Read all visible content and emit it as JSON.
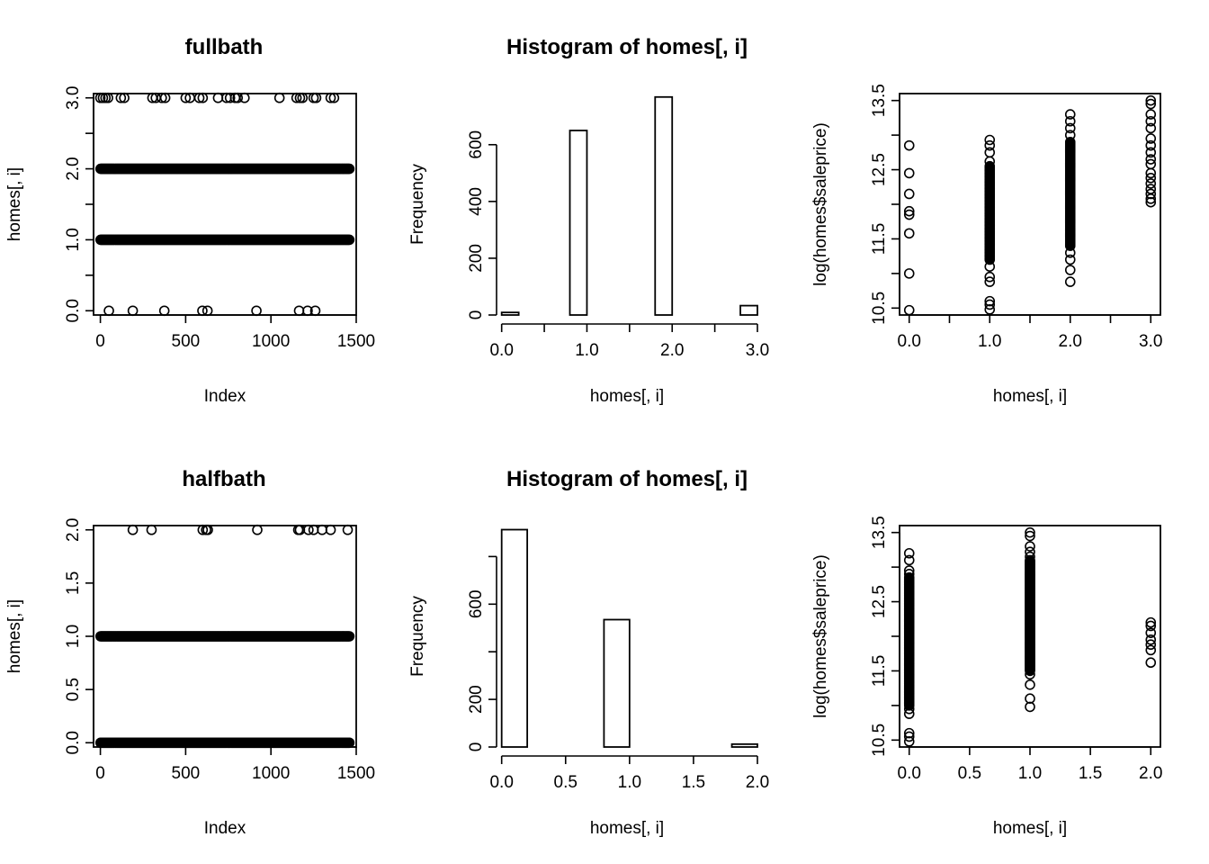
{
  "chart_data": [
    {
      "type": "scatter",
      "title": "fullbath",
      "xlabel": "Index",
      "ylabel": "homes[, i]",
      "xlim": [
        -40,
        1500
      ],
      "ylim": [
        -0.06,
        3.06
      ],
      "xticks": [
        0,
        500,
        1000,
        1500
      ],
      "xtick_labels": [
        "0",
        "500",
        "1000",
        "1500"
      ],
      "yticks": [
        0,
        0.5,
        1,
        1.5,
        2,
        2.5,
        3
      ],
      "ytick_labels": [
        "0.0",
        "",
        "1.0",
        "",
        "2.0",
        "",
        "3.0"
      ],
      "grid": false,
      "dense_rows": [
        {
          "y": 1,
          "x_from": 1,
          "x_to": 1460
        },
        {
          "y": 2,
          "x_from": 1,
          "x_to": 1460
        }
      ],
      "points": [
        {
          "x": 0,
          "y": 3
        },
        {
          "x": 15,
          "y": 3
        },
        {
          "x": 30,
          "y": 3
        },
        {
          "x": 45,
          "y": 3
        },
        {
          "x": 120,
          "y": 3
        },
        {
          "x": 140,
          "y": 3
        },
        {
          "x": 305,
          "y": 3
        },
        {
          "x": 325,
          "y": 3
        },
        {
          "x": 360,
          "y": 3
        },
        {
          "x": 380,
          "y": 3
        },
        {
          "x": 500,
          "y": 3
        },
        {
          "x": 525,
          "y": 3
        },
        {
          "x": 580,
          "y": 3
        },
        {
          "x": 600,
          "y": 3
        },
        {
          "x": 690,
          "y": 3
        },
        {
          "x": 740,
          "y": 3
        },
        {
          "x": 760,
          "y": 3
        },
        {
          "x": 790,
          "y": 3
        },
        {
          "x": 805,
          "y": 3
        },
        {
          "x": 845,
          "y": 3
        },
        {
          "x": 1050,
          "y": 3
        },
        {
          "x": 1150,
          "y": 3
        },
        {
          "x": 1170,
          "y": 3
        },
        {
          "x": 1185,
          "y": 3
        },
        {
          "x": 1250,
          "y": 3
        },
        {
          "x": 1265,
          "y": 3
        },
        {
          "x": 1350,
          "y": 3
        },
        {
          "x": 1370,
          "y": 3
        },
        {
          "x": 50,
          "y": 0
        },
        {
          "x": 190,
          "y": 0
        },
        {
          "x": 375,
          "y": 0
        },
        {
          "x": 598,
          "y": 0
        },
        {
          "x": 628,
          "y": 0
        },
        {
          "x": 915,
          "y": 0
        },
        {
          "x": 1165,
          "y": 0
        },
        {
          "x": 1215,
          "y": 0
        },
        {
          "x": 1260,
          "y": 0
        }
      ]
    },
    {
      "type": "bar",
      "title": "Histogram of homes[, i]",
      "xlabel": "homes[, i]",
      "ylabel": "Frequency",
      "xlim": [
        -0.06,
        3.0
      ],
      "ylim": [
        0,
        780
      ],
      "xticks": [
        0,
        0.5,
        1,
        1.5,
        2,
        2.5,
        3
      ],
      "xtick_labels": [
        "0.0",
        "",
        "1.0",
        "",
        "2.0",
        "",
        "3.0"
      ],
      "yticks": [
        0,
        200,
        400,
        600
      ],
      "ytick_labels": [
        "0",
        "200",
        "400",
        "600"
      ],
      "bins": [
        {
          "x0": 0.0,
          "x1": 0.2,
          "value": 9
        },
        {
          "x0": 0.2,
          "x1": 0.4,
          "value": 0
        },
        {
          "x0": 0.4,
          "x1": 0.6,
          "value": 0
        },
        {
          "x0": 0.6,
          "x1": 0.8,
          "value": 0
        },
        {
          "x0": 0.8,
          "x1": 1.0,
          "value": 650
        },
        {
          "x0": 1.0,
          "x1": 1.2,
          "value": 0
        },
        {
          "x0": 1.2,
          "x1": 1.4,
          "value": 0
        },
        {
          "x0": 1.4,
          "x1": 1.6,
          "value": 0
        },
        {
          "x0": 1.6,
          "x1": 1.8,
          "value": 0
        },
        {
          "x0": 1.8,
          "x1": 2.0,
          "value": 768
        },
        {
          "x0": 2.0,
          "x1": 2.2,
          "value": 0
        },
        {
          "x0": 2.2,
          "x1": 2.4,
          "value": 0
        },
        {
          "x0": 2.4,
          "x1": 2.6,
          "value": 0
        },
        {
          "x0": 2.6,
          "x1": 2.8,
          "value": 0
        },
        {
          "x0": 2.8,
          "x1": 3.0,
          "value": 33
        }
      ]
    },
    {
      "type": "scatter",
      "title": "",
      "xlabel": "homes[, i]",
      "ylabel": "log(homes$saleprice)",
      "xlim": [
        -0.12,
        3.12
      ],
      "ylim": [
        10.4,
        13.6
      ],
      "xticks": [
        0,
        0.5,
        1,
        1.5,
        2,
        2.5,
        3
      ],
      "xtick_labels": [
        "0.0",
        "",
        "1.0",
        "",
        "2.0",
        "",
        "3.0"
      ],
      "yticks": [
        10.5,
        11,
        11.5,
        12,
        12.5,
        13,
        13.5
      ],
      "ytick_labels": [
        "10.5",
        "",
        "11.5",
        "",
        "12.5",
        "",
        "13.5"
      ],
      "grid": false,
      "strips": [
        {
          "x": 1,
          "y_from": 11.2,
          "y_to": 12.55
        },
        {
          "x": 2,
          "y_from": 11.4,
          "y_to": 12.9
        }
      ],
      "points": [
        {
          "x": 0,
          "y": 12.85
        },
        {
          "x": 0,
          "y": 12.45
        },
        {
          "x": 0,
          "y": 12.15
        },
        {
          "x": 0,
          "y": 11.9
        },
        {
          "x": 0,
          "y": 11.85
        },
        {
          "x": 0,
          "y": 11.58
        },
        {
          "x": 0,
          "y": 11.0
        },
        {
          "x": 0,
          "y": 10.47
        },
        {
          "x": 1,
          "y": 12.93
        },
        {
          "x": 1,
          "y": 12.85
        },
        {
          "x": 1,
          "y": 12.75
        },
        {
          "x": 1,
          "y": 12.62
        },
        {
          "x": 1,
          "y": 11.1
        },
        {
          "x": 1,
          "y": 10.95
        },
        {
          "x": 1,
          "y": 10.88
        },
        {
          "x": 1,
          "y": 10.6
        },
        {
          "x": 1,
          "y": 10.55
        },
        {
          "x": 1,
          "y": 10.48
        },
        {
          "x": 2,
          "y": 13.3
        },
        {
          "x": 2,
          "y": 13.2
        },
        {
          "x": 2,
          "y": 13.1
        },
        {
          "x": 2,
          "y": 13.0
        },
        {
          "x": 2,
          "y": 11.3
        },
        {
          "x": 2,
          "y": 11.2
        },
        {
          "x": 2,
          "y": 11.05
        },
        {
          "x": 2,
          "y": 10.88
        },
        {
          "x": 3,
          "y": 13.5
        },
        {
          "x": 3,
          "y": 13.45
        },
        {
          "x": 3,
          "y": 13.3
        },
        {
          "x": 3,
          "y": 13.2
        },
        {
          "x": 3,
          "y": 13.1
        },
        {
          "x": 3,
          "y": 12.95
        },
        {
          "x": 3,
          "y": 12.85
        },
        {
          "x": 3,
          "y": 12.75
        },
        {
          "x": 3,
          "y": 12.65
        },
        {
          "x": 3,
          "y": 12.58
        },
        {
          "x": 3,
          "y": 12.45
        },
        {
          "x": 3,
          "y": 12.38
        },
        {
          "x": 3,
          "y": 12.3
        },
        {
          "x": 3,
          "y": 12.22
        },
        {
          "x": 3,
          "y": 12.15
        },
        {
          "x": 3,
          "y": 12.08
        },
        {
          "x": 3,
          "y": 12.03
        }
      ]
    },
    {
      "type": "scatter",
      "title": "halfbath",
      "xlabel": "Index",
      "ylabel": "homes[, i]",
      "xlim": [
        -40,
        1500
      ],
      "ylim": [
        -0.04,
        2.04
      ],
      "xticks": [
        0,
        500,
        1000,
        1500
      ],
      "xtick_labels": [
        "0",
        "500",
        "1000",
        "1500"
      ],
      "yticks": [
        0,
        0.5,
        1,
        1.5,
        2
      ],
      "ytick_labels": [
        "0.0",
        "0.5",
        "1.0",
        "1.5",
        "2.0"
      ],
      "grid": false,
      "dense_rows": [
        {
          "y": 0,
          "x_from": 1,
          "x_to": 1460
        },
        {
          "y": 1,
          "x_from": 1,
          "x_to": 1460
        }
      ],
      "points": [
        {
          "x": 190,
          "y": 2
        },
        {
          "x": 300,
          "y": 2
        },
        {
          "x": 600,
          "y": 2
        },
        {
          "x": 620,
          "y": 2
        },
        {
          "x": 630,
          "y": 2
        },
        {
          "x": 920,
          "y": 2
        },
        {
          "x": 1160,
          "y": 2
        },
        {
          "x": 1170,
          "y": 2
        },
        {
          "x": 1220,
          "y": 2
        },
        {
          "x": 1250,
          "y": 2
        },
        {
          "x": 1300,
          "y": 2
        },
        {
          "x": 1350,
          "y": 2
        },
        {
          "x": 1450,
          "y": 2
        }
      ]
    },
    {
      "type": "bar",
      "title": "Histogram of homes[, i]",
      "xlabel": "homes[, i]",
      "ylabel": "Frequency",
      "xlim": [
        -0.04,
        2.0
      ],
      "ylim": [
        0,
        930
      ],
      "xticks": [
        0,
        0.5,
        1,
        1.5,
        2
      ],
      "xtick_labels": [
        "0.0",
        "0.5",
        "1.0",
        "1.5",
        "2.0"
      ],
      "yticks": [
        0,
        200,
        400,
        600,
        800
      ],
      "ytick_labels": [
        "0",
        "200",
        "",
        "600",
        ""
      ],
      "bins": [
        {
          "x0": 0.0,
          "x1": 0.2,
          "value": 913
        },
        {
          "x0": 0.2,
          "x1": 0.4,
          "value": 0
        },
        {
          "x0": 0.4,
          "x1": 0.6,
          "value": 0
        },
        {
          "x0": 0.6,
          "x1": 0.8,
          "value": 0
        },
        {
          "x0": 0.8,
          "x1": 1.0,
          "value": 535
        },
        {
          "x0": 1.0,
          "x1": 1.2,
          "value": 0
        },
        {
          "x0": 1.2,
          "x1": 1.4,
          "value": 0
        },
        {
          "x0": 1.4,
          "x1": 1.6,
          "value": 0
        },
        {
          "x0": 1.6,
          "x1": 1.8,
          "value": 0
        },
        {
          "x0": 1.8,
          "x1": 2.0,
          "value": 12
        }
      ]
    },
    {
      "type": "scatter",
      "title": "",
      "xlabel": "homes[, i]",
      "ylabel": "log(homes$saleprice)",
      "xlim": [
        -0.08,
        2.08
      ],
      "ylim": [
        10.4,
        13.6
      ],
      "xticks": [
        0,
        0.5,
        1,
        1.5,
        2
      ],
      "xtick_labels": [
        "0.0",
        "0.5",
        "1.0",
        "1.5",
        "2.0"
      ],
      "yticks": [
        10.5,
        11,
        11.5,
        12,
        12.5,
        13,
        13.5
      ],
      "ytick_labels": [
        "10.5",
        "",
        "11.5",
        "",
        "12.5",
        "",
        "13.5"
      ],
      "grid": false,
      "strips": [
        {
          "x": 0,
          "y_from": 11.0,
          "y_to": 12.85
        },
        {
          "x": 1,
          "y_from": 11.5,
          "y_to": 13.1
        }
      ],
      "points": [
        {
          "x": 0,
          "y": 13.2
        },
        {
          "x": 0,
          "y": 13.1
        },
        {
          "x": 0,
          "y": 12.95
        },
        {
          "x": 0,
          "y": 12.9
        },
        {
          "x": 0,
          "y": 10.95
        },
        {
          "x": 0,
          "y": 10.88
        },
        {
          "x": 0,
          "y": 10.6
        },
        {
          "x": 0,
          "y": 10.55
        },
        {
          "x": 0,
          "y": 10.48
        },
        {
          "x": 1,
          "y": 13.5
        },
        {
          "x": 1,
          "y": 13.45
        },
        {
          "x": 1,
          "y": 13.3
        },
        {
          "x": 1,
          "y": 13.22
        },
        {
          "x": 1,
          "y": 13.15
        },
        {
          "x": 1,
          "y": 11.45
        },
        {
          "x": 1,
          "y": 11.3
        },
        {
          "x": 1,
          "y": 11.1
        },
        {
          "x": 1,
          "y": 10.98
        },
        {
          "x": 2,
          "y": 12.2
        },
        {
          "x": 2,
          "y": 12.15
        },
        {
          "x": 2,
          "y": 12.05
        },
        {
          "x": 2,
          "y": 11.95
        },
        {
          "x": 2,
          "y": 11.88
        },
        {
          "x": 2,
          "y": 11.8
        },
        {
          "x": 2,
          "y": 11.62
        }
      ]
    }
  ]
}
